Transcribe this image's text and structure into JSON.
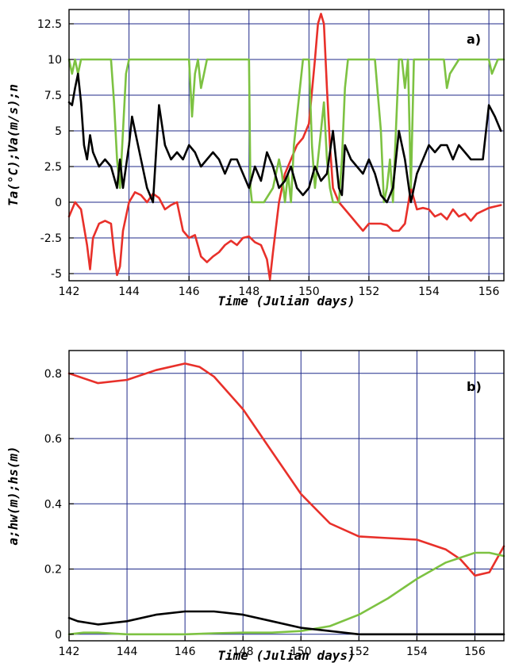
{
  "colors": {
    "red": "#e8302a",
    "green": "#7dc242",
    "black": "#000000",
    "grid": "#1f2a8a"
  },
  "chart_data": [
    {
      "panel_label": "a)",
      "type": "line",
      "xlabel": "Time (Julian days)",
      "ylabel": "Ta(°C);Va(m/s);n",
      "xlim": [
        142,
        156.5
      ],
      "ylim": [
        -5.5,
        13.5
      ],
      "grid": true,
      "xticks": [
        142,
        144,
        146,
        148,
        150,
        152,
        154,
        156
      ],
      "xtick_labels": [
        "142",
        "144",
        "146",
        "148",
        "150",
        "152",
        "154",
        "156"
      ],
      "yticks": [
        -5,
        -2.5,
        0,
        2.5,
        5,
        7.5,
        10,
        12.5
      ],
      "ytick_labels": [
        "-5",
        "-2.5",
        "0",
        "2.5",
        "5",
        "7.5",
        "10",
        "12.5"
      ],
      "series": [
        {
          "color": "#e8302a",
          "x": [
            142,
            142.2,
            142.4,
            142.6,
            142.7,
            142.8,
            143.0,
            143.2,
            143.4,
            143.5,
            143.6,
            143.7,
            143.8,
            143.9,
            144.0,
            144.2,
            144.4,
            144.6,
            144.8,
            145.0,
            145.2,
            145.4,
            145.6,
            145.8,
            146.0,
            146.2,
            146.4,
            146.6,
            146.8,
            147.0,
            147.2,
            147.4,
            147.6,
            147.8,
            148.0,
            148.2,
            148.4,
            148.6,
            148.7,
            148.8,
            149.0,
            149.2,
            149.4,
            149.6,
            149.8,
            150.0,
            150.2,
            150.3,
            150.4,
            150.5,
            150.6,
            150.7,
            150.8,
            151.0,
            151.2,
            151.4,
            151.6,
            151.8,
            152.0,
            152.2,
            152.4,
            152.6,
            152.8,
            153.0,
            153.2,
            153.4,
            153.6,
            153.8,
            154.0,
            154.2,
            154.4,
            154.6,
            154.8,
            155.0,
            155.2,
            155.4,
            155.6,
            155.8,
            156.0,
            156.2,
            156.4
          ],
          "y": [
            -1,
            0,
            -0.5,
            -3,
            -4.7,
            -2.5,
            -1.5,
            -1.3,
            -1.5,
            -3.5,
            -5.1,
            -4.5,
            -2,
            -1,
            0,
            0.7,
            0.5,
            0,
            0.6,
            0.3,
            -0.5,
            -0.2,
            0,
            -2,
            -2.5,
            -2.3,
            -3.8,
            -4.2,
            -3.8,
            -3.5,
            -3,
            -2.7,
            -3,
            -2.5,
            -2.4,
            -2.8,
            -3,
            -4,
            -5.4,
            -3.5,
            0,
            2,
            3,
            4,
            4.5,
            5.5,
            10,
            12.5,
            13.2,
            12.5,
            8,
            4,
            1,
            0,
            -0.5,
            -1,
            -1.5,
            -2,
            -1.5,
            -1.5,
            -1.5,
            -1.6,
            -2,
            -2,
            -1.5,
            1,
            -0.5,
            -0.4,
            -0.5,
            -1,
            -0.8,
            -1.2,
            -0.5,
            -1,
            -0.8,
            -1.3,
            -0.8,
            -0.6,
            -0.4,
            -0.3,
            -0.2
          ]
        },
        {
          "color": "#7dc242",
          "x": [
            142,
            142.1,
            142.2,
            142.3,
            142.4,
            142.5,
            143.0,
            143.4,
            143.5,
            143.6,
            143.7,
            143.8,
            143.9,
            144.0,
            144.5,
            145.0,
            145.5,
            146.0,
            146.1,
            146.2,
            146.3,
            146.4,
            146.5,
            146.6,
            147.0,
            147.5,
            148.0,
            148.05,
            148.1,
            148.5,
            148.8,
            149.0,
            149.1,
            149.2,
            149.3,
            149.4,
            149.5,
            149.6,
            149.8,
            150.0,
            150.1,
            150.2,
            150.4,
            150.5,
            150.6,
            150.7,
            150.8,
            151.0,
            151.1,
            151.2,
            151.3,
            151.5,
            151.8,
            152.0,
            152.2,
            152.4,
            152.5,
            152.6,
            152.7,
            152.8,
            152.9,
            153.0,
            153.1,
            153.2,
            153.3,
            153.4,
            153.5,
            154.0,
            154.5,
            154.6,
            154.7,
            155.0,
            155.5,
            156.0,
            156.1,
            156.3,
            156.5
          ],
          "y": [
            10,
            9,
            10,
            9,
            10,
            10,
            10,
            10,
            7,
            3,
            1,
            5,
            9,
            10,
            10,
            10,
            10,
            10,
            6,
            9,
            10,
            8,
            9,
            10,
            10,
            10,
            10,
            1,
            0,
            0,
            1,
            3,
            2,
            0,
            2,
            0,
            4,
            6,
            10,
            10,
            4,
            1,
            5,
            7,
            3,
            1,
            0,
            0,
            3,
            8,
            10,
            10,
            10,
            10,
            10,
            5,
            0,
            1,
            3,
            0,
            5,
            10,
            10,
            8,
            10,
            1,
            10,
            10,
            10,
            8,
            9,
            10,
            10,
            10,
            9,
            10,
            10
          ]
        },
        {
          "color": "#000000",
          "x": [
            142,
            142.1,
            142.2,
            142.3,
            142.4,
            142.5,
            142.6,
            142.7,
            142.8,
            143.0,
            143.2,
            143.4,
            143.6,
            143.7,
            143.8,
            144.0,
            144.1,
            144.2,
            144.4,
            144.6,
            144.8,
            145.0,
            145.2,
            145.4,
            145.6,
            145.8,
            146.0,
            146.2,
            146.4,
            146.6,
            146.8,
            147.0,
            147.2,
            147.4,
            147.6,
            147.8,
            148.0,
            148.2,
            148.4,
            148.6,
            148.8,
            149.0,
            149.2,
            149.4,
            149.6,
            149.8,
            150.0,
            150.2,
            150.4,
            150.6,
            150.8,
            151.0,
            151.1,
            151.2,
            151.4,
            151.6,
            151.8,
            152.0,
            152.2,
            152.4,
            152.6,
            152.8,
            153.0,
            153.2,
            153.4,
            153.6,
            153.8,
            154.0,
            154.2,
            154.4,
            154.6,
            154.8,
            155.0,
            155.2,
            155.4,
            155.6,
            155.8,
            156.0,
            156.2,
            156.4
          ],
          "y": [
            7,
            6.8,
            8,
            9,
            7,
            4,
            3,
            4.7,
            3.5,
            2.5,
            3,
            2.5,
            1,
            3,
            1,
            4,
            6,
            5,
            3,
            1,
            0,
            6.8,
            4,
            3,
            3.5,
            3,
            4,
            3.5,
            2.5,
            3,
            3.5,
            3,
            2,
            3,
            3,
            2,
            1,
            2.5,
            1.5,
            3.5,
            2.5,
            1,
            1.5,
            2.5,
            1,
            0.5,
            1,
            2.5,
            1.5,
            2,
            5,
            1,
            0.5,
            4,
            3,
            2.5,
            2,
            3,
            2,
            0.5,
            0,
            1,
            5,
            3,
            0,
            2,
            3,
            4,
            3.5,
            4,
            4,
            3,
            4,
            3.5,
            3,
            3,
            3,
            6.8,
            6,
            5
          ]
        }
      ]
    },
    {
      "panel_label": "b)",
      "type": "line",
      "xlabel": "Time (Julian days)",
      "ylabel": "a;hw(m);hs(m)",
      "xlim": [
        142,
        157
      ],
      "ylim": [
        -0.02,
        0.87
      ],
      "grid": true,
      "xticks": [
        142,
        144,
        146,
        148,
        150,
        152,
        154,
        156
      ],
      "xtick_labels": [
        "142",
        "144",
        "146",
        "148",
        "150",
        "152",
        "154",
        "156"
      ],
      "yticks": [
        0,
        0.2,
        0.4,
        0.6,
        0.8
      ],
      "ytick_labels": [
        "0",
        "0.2",
        "0.4",
        "0.6",
        "0.8"
      ],
      "series": [
        {
          "color": "#e8302a",
          "x": [
            142,
            143,
            144,
            145,
            146,
            146.5,
            147,
            148,
            149,
            150,
            151,
            152,
            153,
            154,
            155,
            155.5,
            156,
            156.5,
            157
          ],
          "y": [
            0.8,
            0.77,
            0.78,
            0.81,
            0.83,
            0.82,
            0.79,
            0.69,
            0.56,
            0.43,
            0.34,
            0.3,
            0.295,
            0.29,
            0.26,
            0.23,
            0.18,
            0.19,
            0.27
          ]
        },
        {
          "color": "#7dc242",
          "x": [
            142,
            142.5,
            143,
            144,
            145,
            146,
            147,
            148,
            149,
            150,
            151,
            152,
            153,
            154,
            155,
            156,
            156.5,
            157
          ],
          "y": [
            0.0,
            0.005,
            0.005,
            0.0,
            0.0,
            0.0,
            0.003,
            0.005,
            0.005,
            0.01,
            0.025,
            0.06,
            0.11,
            0.17,
            0.22,
            0.25,
            0.25,
            0.24
          ]
        },
        {
          "color": "#000000",
          "x": [
            142,
            142.3,
            143,
            144,
            145,
            146,
            147,
            148,
            149,
            150,
            151,
            152,
            153,
            154,
            155,
            156,
            157
          ],
          "y": [
            0.05,
            0.04,
            0.03,
            0.04,
            0.06,
            0.07,
            0.07,
            0.06,
            0.04,
            0.02,
            0.01,
            0.0,
            0.0,
            0.0,
            0.0,
            0.0,
            0.0
          ]
        }
      ]
    }
  ]
}
